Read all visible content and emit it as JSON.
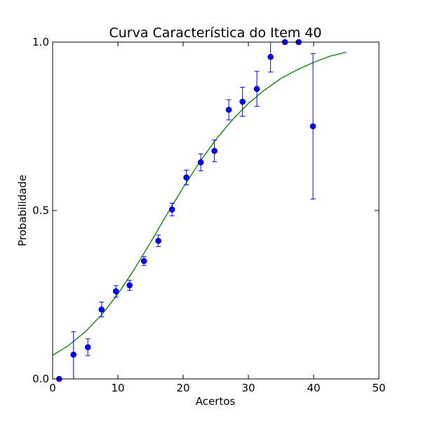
{
  "chart_data": {
    "type": "scatter",
    "title": "Curva Característica do Item 40",
    "xlabel": "Acertos",
    "ylabel": "Probabilidade",
    "xlim": [
      0,
      50
    ],
    "ylim": [
      0,
      1
    ],
    "x_ticks": [
      0,
      10,
      20,
      30,
      40,
      50
    ],
    "x_tick_labels": [
      "0",
      "10",
      "20",
      "30",
      "40",
      "50"
    ],
    "y_ticks": [
      0,
      0.5,
      1.0
    ],
    "y_tick_labels": [
      "0.0",
      "0.5",
      "1.0"
    ],
    "grid": false,
    "colors": {
      "points": "#0000ff",
      "errorbars": "#0000ff",
      "curve": "#008000"
    },
    "points": [
      {
        "x": 1.0,
        "y": 0.0,
        "err_low": 0.0,
        "err_high": 0.0
      },
      {
        "x": 3.2,
        "y": 0.072,
        "err_low": 0.072,
        "err_high": 0.068
      },
      {
        "x": 5.4,
        "y": 0.094,
        "err_low": 0.025,
        "err_high": 0.025
      },
      {
        "x": 7.5,
        "y": 0.206,
        "err_low": 0.022,
        "err_high": 0.022
      },
      {
        "x": 9.7,
        "y": 0.26,
        "err_low": 0.017,
        "err_high": 0.017
      },
      {
        "x": 11.8,
        "y": 0.278,
        "err_low": 0.015,
        "err_high": 0.015
      },
      {
        "x": 14.0,
        "y": 0.35,
        "err_low": 0.013,
        "err_high": 0.013
      },
      {
        "x": 16.2,
        "y": 0.41,
        "err_low": 0.017,
        "err_high": 0.017
      },
      {
        "x": 18.3,
        "y": 0.503,
        "err_low": 0.019,
        "err_high": 0.019
      },
      {
        "x": 20.5,
        "y": 0.598,
        "err_low": 0.022,
        "err_high": 0.022
      },
      {
        "x": 22.7,
        "y": 0.643,
        "err_low": 0.025,
        "err_high": 0.025
      },
      {
        "x": 24.8,
        "y": 0.677,
        "err_low": 0.032,
        "err_high": 0.032
      },
      {
        "x": 27.0,
        "y": 0.799,
        "err_low": 0.03,
        "err_high": 0.03
      },
      {
        "x": 29.1,
        "y": 0.823,
        "err_low": 0.043,
        "err_high": 0.043
      },
      {
        "x": 31.3,
        "y": 0.861,
        "err_low": 0.052,
        "err_high": 0.052
      },
      {
        "x": 33.4,
        "y": 0.956,
        "err_low": 0.045,
        "err_high": 0.044
      },
      {
        "x": 35.6,
        "y": 1.0,
        "err_low": 0.0,
        "err_high": 0.0
      },
      {
        "x": 37.7,
        "y": 1.0,
        "err_low": 0.0,
        "err_high": 0.0
      },
      {
        "x": 39.9,
        "y": 0.75,
        "err_low": 0.216,
        "err_high": 0.216
      }
    ],
    "fitted_curve": {
      "x": [
        0,
        2.5,
        5,
        7.5,
        10,
        12.5,
        15,
        17.5,
        20,
        22.5,
        25,
        27.5,
        30,
        32.5,
        35,
        37.5,
        40,
        42.5,
        45
      ],
      "y": [
        0.07,
        0.1,
        0.14,
        0.19,
        0.252,
        0.325,
        0.405,
        0.488,
        0.568,
        0.643,
        0.71,
        0.768,
        0.818,
        0.858,
        0.892,
        0.918,
        0.94,
        0.958,
        0.97
      ]
    }
  }
}
